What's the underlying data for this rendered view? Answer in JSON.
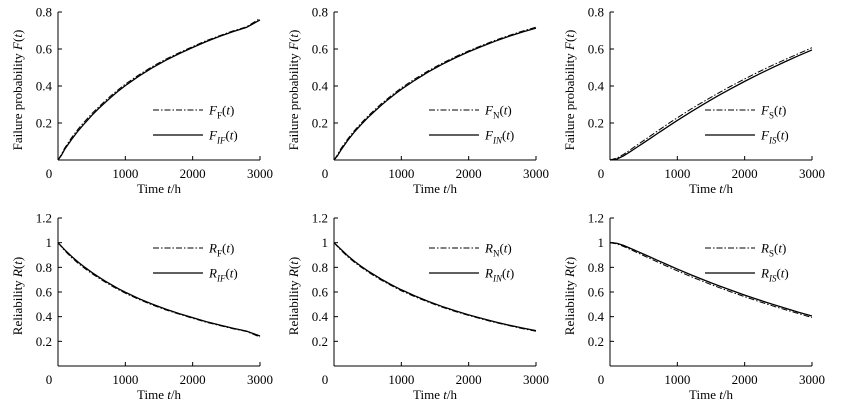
{
  "chart_data": [
    {
      "type": "line",
      "panel": "top-left",
      "xlabel": "Time t/h",
      "ylabel": "Failure probability F(t)",
      "xlim": [
        0,
        3000
      ],
      "ylim": [
        0,
        0.8
      ],
      "xticks": [
        "0",
        "1000",
        "2000",
        "3000"
      ],
      "yticks": [
        "0.2",
        "0.4",
        "0.6",
        "0.8"
      ],
      "legend_position": "center-right",
      "series": [
        {
          "name": "F_F(t)",
          "base": "F",
          "sub": "F",
          "style": "dashdot",
          "x": [
            0,
            50,
            100,
            200,
            300,
            400,
            500,
            600,
            700,
            800,
            900,
            1000,
            1200,
            1400,
            1600,
            1800,
            2000,
            2200,
            2400,
            2600,
            2800,
            3000
          ],
          "y": [
            0,
            0.03,
            0.065,
            0.12,
            0.168,
            0.21,
            0.25,
            0.285,
            0.32,
            0.352,
            0.382,
            0.41,
            0.46,
            0.505,
            0.545,
            0.58,
            0.613,
            0.645,
            0.672,
            0.698,
            0.72,
            0.765
          ]
        },
        {
          "name": "F_IF(t)",
          "base": "F",
          "sub": "IF",
          "style": "solid",
          "x": [
            0,
            50,
            100,
            200,
            300,
            400,
            500,
            600,
            700,
            800,
            900,
            1000,
            1200,
            1400,
            1600,
            1800,
            2000,
            2200,
            2400,
            2600,
            2800,
            3000
          ],
          "y": [
            0,
            0.025,
            0.058,
            0.11,
            0.158,
            0.2,
            0.24,
            0.277,
            0.311,
            0.343,
            0.374,
            0.402,
            0.453,
            0.498,
            0.539,
            0.575,
            0.608,
            0.64,
            0.668,
            0.694,
            0.717,
            0.757
          ]
        }
      ]
    },
    {
      "type": "line",
      "panel": "top-middle",
      "xlabel": "Time t/h",
      "ylabel": "Failure probability F(t)",
      "xlim": [
        0,
        3000
      ],
      "ylim": [
        0,
        0.8
      ],
      "xticks": [
        "0",
        "1000",
        "2000",
        "3000"
      ],
      "yticks": [
        "0.2",
        "0.4",
        "0.6",
        "0.8"
      ],
      "legend_position": "center-right",
      "series": [
        {
          "name": "F_N(t)",
          "base": "F",
          "sub": "N",
          "style": "dashdot",
          "x": [
            0,
            50,
            100,
            200,
            300,
            400,
            500,
            600,
            700,
            800,
            900,
            1000,
            1200,
            1400,
            1600,
            1800,
            2000,
            2200,
            2400,
            2600,
            2800,
            3000
          ],
          "y": [
            0,
            0.028,
            0.06,
            0.112,
            0.158,
            0.198,
            0.236,
            0.27,
            0.303,
            0.333,
            0.362,
            0.39,
            0.438,
            0.482,
            0.522,
            0.558,
            0.59,
            0.62,
            0.648,
            0.673,
            0.697,
            0.718
          ]
        },
        {
          "name": "F_IN(t)",
          "base": "F",
          "sub": "IN",
          "style": "solid",
          "x": [
            0,
            50,
            100,
            200,
            300,
            400,
            500,
            600,
            700,
            800,
            900,
            1000,
            1200,
            1400,
            1600,
            1800,
            2000,
            2200,
            2400,
            2600,
            2800,
            3000
          ],
          "y": [
            0,
            0.022,
            0.052,
            0.104,
            0.15,
            0.19,
            0.228,
            0.262,
            0.295,
            0.326,
            0.355,
            0.382,
            0.431,
            0.476,
            0.516,
            0.552,
            0.585,
            0.615,
            0.643,
            0.669,
            0.692,
            0.713
          ]
        }
      ]
    },
    {
      "type": "line",
      "panel": "top-right",
      "xlabel": "Time t/h",
      "ylabel": "Failure probability F(t)",
      "xlim": [
        0,
        3000
      ],
      "ylim": [
        0,
        0.8
      ],
      "xticks": [
        "0",
        "1000",
        "2000",
        "3000"
      ],
      "yticks": [
        "0.2",
        "0.4",
        "0.6",
        "0.8"
      ],
      "legend_position": "center-right",
      "series": [
        {
          "name": "F_S(t)",
          "base": "F",
          "sub": "S",
          "style": "dashdot",
          "x": [
            0,
            100,
            200,
            300,
            400,
            500,
            600,
            700,
            800,
            900,
            1000,
            1200,
            1400,
            1600,
            1800,
            2000,
            2200,
            2400,
            2600,
            2800,
            3000
          ],
          "y": [
            0,
            0.01,
            0.03,
            0.055,
            0.08,
            0.105,
            0.13,
            0.155,
            0.18,
            0.205,
            0.228,
            0.275,
            0.318,
            0.36,
            0.4,
            0.438,
            0.475,
            0.51,
            0.543,
            0.575,
            0.607
          ]
        },
        {
          "name": "F_IS(t)",
          "base": "F",
          "sub": "IS",
          "style": "solid",
          "x": [
            0,
            100,
            200,
            300,
            400,
            500,
            600,
            700,
            800,
            900,
            1000,
            1200,
            1400,
            1600,
            1800,
            2000,
            2200,
            2400,
            2600,
            2800,
            3000
          ],
          "y": [
            0,
            0.005,
            0.022,
            0.045,
            0.069,
            0.093,
            0.117,
            0.142,
            0.166,
            0.19,
            0.214,
            0.26,
            0.304,
            0.346,
            0.386,
            0.425,
            0.462,
            0.497,
            0.531,
            0.564,
            0.595
          ]
        }
      ]
    },
    {
      "type": "line",
      "panel": "bottom-left",
      "xlabel": "Time t/h",
      "ylabel": "Reliability R(t)",
      "xlim": [
        0,
        3000
      ],
      "ylim": [
        0,
        1.2
      ],
      "xticks": [
        "0",
        "1000",
        "2000",
        "3000"
      ],
      "yticks": [
        "0.2",
        "0.4",
        "0.6",
        "0.8",
        "1",
        "1.2"
      ],
      "legend_position": "top-right",
      "series": [
        {
          "name": "R_F(t)",
          "base": "R",
          "sub": "F",
          "style": "dashdot",
          "x": [
            0,
            100,
            200,
            300,
            400,
            500,
            600,
            700,
            800,
            900,
            1000,
            1200,
            1400,
            1600,
            1800,
            2000,
            2200,
            2400,
            2600,
            2800,
            3000
          ],
          "y": [
            1.0,
            0.935,
            0.88,
            0.832,
            0.79,
            0.75,
            0.715,
            0.68,
            0.648,
            0.618,
            0.59,
            0.54,
            0.495,
            0.455,
            0.42,
            0.387,
            0.355,
            0.328,
            0.302,
            0.28,
            0.235
          ]
        },
        {
          "name": "R_IF(t)",
          "base": "R",
          "sub": "IF",
          "style": "solid",
          "x": [
            0,
            100,
            200,
            300,
            400,
            500,
            600,
            700,
            800,
            900,
            1000,
            1200,
            1400,
            1600,
            1800,
            2000,
            2200,
            2400,
            2600,
            2800,
            3000
          ],
          "y": [
            1.0,
            0.942,
            0.89,
            0.842,
            0.8,
            0.76,
            0.723,
            0.689,
            0.657,
            0.626,
            0.598,
            0.547,
            0.502,
            0.461,
            0.425,
            0.392,
            0.36,
            0.332,
            0.306,
            0.283,
            0.243
          ]
        }
      ]
    },
    {
      "type": "line",
      "panel": "bottom-middle",
      "xlabel": "Time t/h",
      "ylabel": "Reliability R(t)",
      "xlim": [
        0,
        3000
      ],
      "ylim": [
        0,
        1.2
      ],
      "xticks": [
        "0",
        "1000",
        "2000",
        "3000"
      ],
      "yticks": [
        "0.2",
        "0.4",
        "0.6",
        "0.8",
        "1",
        "1.2"
      ],
      "legend_position": "top-right",
      "series": [
        {
          "name": "R_N(t)",
          "base": "R",
          "sub": "N",
          "style": "dashdot",
          "x": [
            0,
            100,
            200,
            300,
            400,
            500,
            600,
            700,
            800,
            900,
            1000,
            1200,
            1400,
            1600,
            1800,
            2000,
            2200,
            2400,
            2600,
            2800,
            3000
          ],
          "y": [
            1.0,
            0.94,
            0.888,
            0.842,
            0.802,
            0.764,
            0.73,
            0.697,
            0.667,
            0.638,
            0.61,
            0.562,
            0.518,
            0.478,
            0.442,
            0.41,
            0.38,
            0.352,
            0.327,
            0.303,
            0.282
          ]
        },
        {
          "name": "R_IN(t)",
          "base": "R",
          "sub": "IN",
          "style": "solid",
          "x": [
            0,
            100,
            200,
            300,
            400,
            500,
            600,
            700,
            800,
            900,
            1000,
            1200,
            1400,
            1600,
            1800,
            2000,
            2200,
            2400,
            2600,
            2800,
            3000
          ],
          "y": [
            1.0,
            0.948,
            0.896,
            0.85,
            0.81,
            0.772,
            0.738,
            0.705,
            0.674,
            0.645,
            0.618,
            0.569,
            0.524,
            0.484,
            0.448,
            0.415,
            0.385,
            0.357,
            0.331,
            0.308,
            0.287
          ]
        }
      ]
    },
    {
      "type": "line",
      "panel": "bottom-right",
      "xlabel": "Time t/h",
      "ylabel": "Reliability R(t)",
      "xlim": [
        0,
        3000
      ],
      "ylim": [
        0,
        1.2
      ],
      "xticks": [
        "0",
        "1000",
        "2000",
        "3000"
      ],
      "yticks": [
        "0.2",
        "0.4",
        "0.6",
        "0.8",
        "1",
        "1.2"
      ],
      "legend_position": "top-right",
      "series": [
        {
          "name": "R_S(t)",
          "base": "R",
          "sub": "S",
          "style": "dashdot",
          "x": [
            0,
            100,
            200,
            300,
            400,
            500,
            600,
            700,
            800,
            900,
            1000,
            1200,
            1400,
            1600,
            1800,
            2000,
            2200,
            2400,
            2600,
            2800,
            3000
          ],
          "y": [
            1.0,
            0.99,
            0.97,
            0.945,
            0.92,
            0.895,
            0.87,
            0.845,
            0.82,
            0.795,
            0.772,
            0.725,
            0.682,
            0.64,
            0.6,
            0.562,
            0.525,
            0.49,
            0.457,
            0.425,
            0.393
          ]
        },
        {
          "name": "R_IS(t)",
          "base": "R",
          "sub": "IS",
          "style": "solid",
          "x": [
            0,
            100,
            200,
            300,
            400,
            500,
            600,
            700,
            800,
            900,
            1000,
            1200,
            1400,
            1600,
            1800,
            2000,
            2200,
            2400,
            2600,
            2800,
            3000
          ],
          "y": [
            1.0,
            0.995,
            0.978,
            0.955,
            0.931,
            0.907,
            0.883,
            0.858,
            0.834,
            0.81,
            0.786,
            0.74,
            0.696,
            0.654,
            0.614,
            0.575,
            0.538,
            0.503,
            0.469,
            0.436,
            0.405
          ]
        }
      ]
    }
  ]
}
